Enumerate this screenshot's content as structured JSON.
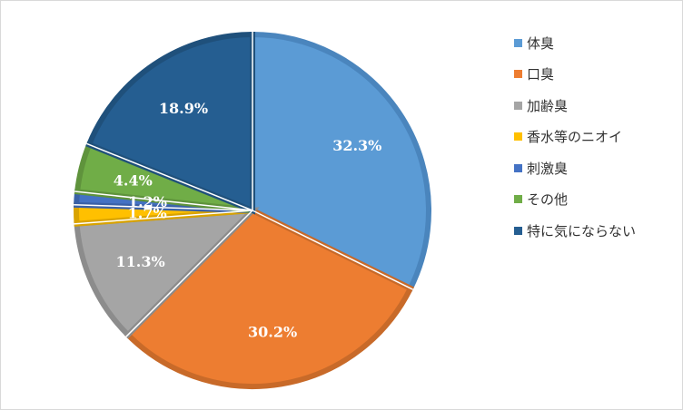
{
  "chart_data": {
    "type": "pie",
    "title": "",
    "legend_position": "right",
    "slices": [
      {
        "label": "体臭",
        "value": 32.3,
        "value_label": "32.3%",
        "color": "#5b9bd5",
        "border": "#4a85bd"
      },
      {
        "label": "口臭",
        "value": 30.2,
        "value_label": "30.2%",
        "color": "#ed7d31",
        "border": "#c86a29"
      },
      {
        "label": "加齢臭",
        "value": 11.3,
        "value_label": "11.3%",
        "color": "#a5a5a5",
        "border": "#8c8c8c"
      },
      {
        "label": "香水等のニオイ",
        "value": 1.7,
        "value_label": "1.7%",
        "color": "#ffc000",
        "border": "#d9a300"
      },
      {
        "label": "刺激臭",
        "value": 1.2,
        "value_label": "1.2%",
        "color": "#4472c4",
        "border": "#3a61a7"
      },
      {
        "label": "その他",
        "value": 4.4,
        "value_label": "4.4%",
        "color": "#70ad47",
        "border": "#5f933c"
      },
      {
        "label": "特に気にならない",
        "value": 18.9,
        "value_label": "18.9%",
        "color": "#255e91",
        "border": "#1f507b"
      }
    ]
  }
}
